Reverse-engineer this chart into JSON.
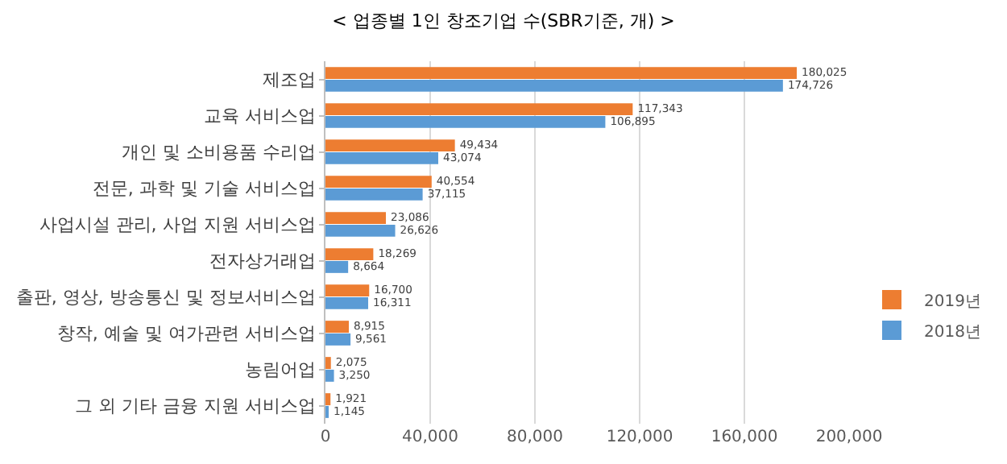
{
  "chart_data": {
    "type": "bar",
    "orientation": "horizontal",
    "title": "< 업종별 1인 창조기업 수(SBR기준, 개) >",
    "categories": [
      "제조업",
      "교육 서비스업",
      "개인 및 소비용품 수리업",
      "전문, 과학 및 기술 서비스업",
      "사업시설 관리, 사업 지원 서비스업",
      "전자상거래업",
      "출판, 영상, 방송통신 및 정보서비스업",
      "창작, 예술 및 여가관련 서비스업",
      "농림어업",
      "그 외 기타 금융 지원 서비스업"
    ],
    "series": [
      {
        "name": "2019년",
        "color": "#ed7d31",
        "values": [
          180025,
          117343,
          49434,
          40554,
          23086,
          18269,
          16700,
          8915,
          2075,
          1921
        ],
        "value_labels": [
          "180,025",
          "117,343",
          "49,434",
          "40,554",
          "23,086",
          "18,269",
          "16,700",
          "8,915",
          "2,075",
          "1,921"
        ]
      },
      {
        "name": "2018년",
        "color": "#5b9bd5",
        "values": [
          174726,
          106895,
          43074,
          37115,
          26626,
          8664,
          16311,
          9561,
          3250,
          1145
        ],
        "value_labels": [
          "174,726",
          "106,895",
          "43,074",
          "37,115",
          "26,626",
          "8,664",
          "16,311",
          "9,561",
          "3,250",
          "1,145"
        ]
      }
    ],
    "xlim": [
      0,
      200000
    ],
    "xticks": [
      {
        "value": 0,
        "label": "0"
      },
      {
        "value": 40000,
        "label": "40,000"
      },
      {
        "value": 80000,
        "label": "80,000"
      },
      {
        "value": 120000,
        "label": "120,000"
      },
      {
        "value": 160000,
        "label": "160,000"
      },
      {
        "value": 200000,
        "label": "200,000"
      }
    ],
    "grid": "x",
    "legend": "right"
  }
}
